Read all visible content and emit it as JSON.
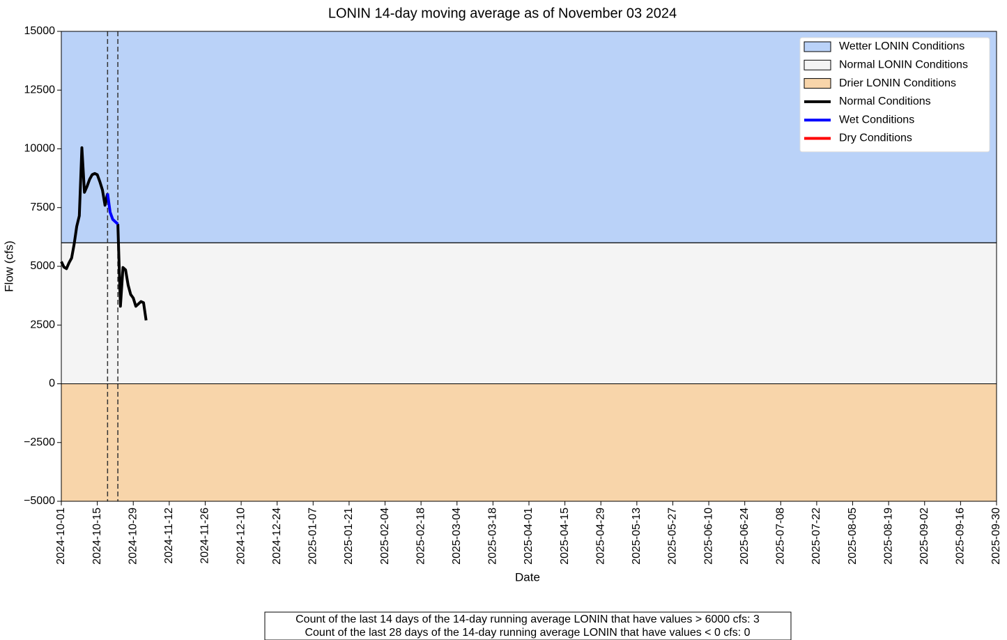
{
  "chart_data": {
    "type": "line",
    "title": "LONIN 14-day moving average as of November 03 2024",
    "x_label": "Date",
    "y_label": "Flow (cfs)",
    "x": [
      "2024-10-01",
      "2024-10-02",
      "2024-10-03",
      "2024-10-04",
      "2024-10-05",
      "2024-10-06",
      "2024-10-07",
      "2024-10-08",
      "2024-10-09",
      "2024-10-10",
      "2024-10-11",
      "2024-10-12",
      "2024-10-13",
      "2024-10-14",
      "2024-10-15",
      "2024-10-16",
      "2024-10-17",
      "2024-10-18",
      "2024-10-19",
      "2024-10-20",
      "2024-10-21",
      "2024-10-22",
      "2024-10-23",
      "2024-10-24",
      "2024-10-25",
      "2024-10-26",
      "2024-10-27",
      "2024-10-28",
      "2024-10-29",
      "2024-10-30",
      "2024-10-31",
      "2024-11-01",
      "2024-11-02",
      "2024-11-03"
    ],
    "series": [
      {
        "name": "Normal Conditions",
        "color": "#000000",
        "values": [
          5200,
          4970,
          4900,
          5150,
          5350,
          5950,
          6700,
          7150,
          10050,
          8150,
          8400,
          8700,
          8900,
          8950,
          8900,
          8600,
          8250,
          7600,
          8100,
          null,
          null,
          null,
          6800,
          3300,
          4950,
          4850,
          4200,
          3800,
          3650,
          3300,
          3400,
          3500,
          3450,
          2700
        ]
      },
      {
        "name": "Wet Conditions",
        "color": "#0000ff",
        "values": [
          null,
          null,
          null,
          null,
          null,
          null,
          null,
          null,
          null,
          null,
          null,
          null,
          null,
          null,
          null,
          null,
          null,
          null,
          8100,
          7300,
          7000,
          6900,
          6800,
          null,
          null,
          null,
          null,
          null,
          null,
          null,
          null,
          null,
          null,
          null
        ]
      },
      {
        "name": "Dry Conditions",
        "color": "#ff0000",
        "values": [
          null,
          null,
          null,
          null,
          null,
          null,
          null,
          null,
          null,
          null,
          null,
          null,
          null,
          null,
          null,
          null,
          null,
          null,
          null,
          null,
          null,
          null,
          null,
          null,
          null,
          null,
          null,
          null,
          null,
          null,
          null,
          null,
          null,
          null
        ]
      }
    ],
    "bands": [
      {
        "name": "Wetter LONIN Conditions",
        "color": "#bad2f8",
        "from": 6000,
        "to": 15000
      },
      {
        "name": "Normal LONIN Conditions",
        "color": "#f4f4f4",
        "from": 0,
        "to": 6000
      },
      {
        "name": "Drier LONIN Conditions",
        "color": "#f8d5aa",
        "from": -5000,
        "to": 0
      }
    ],
    "vlines": [
      "2024-10-19",
      "2024-10-23"
    ],
    "xlim": [
      "2024-10-01",
      "2025-09-30"
    ],
    "xticks": [
      "2024-10-01",
      "2024-10-15",
      "2024-10-29",
      "2024-11-12",
      "2024-11-26",
      "2024-12-10",
      "2024-12-24",
      "2025-01-07",
      "2025-01-21",
      "2025-02-04",
      "2025-02-18",
      "2025-03-04",
      "2025-03-18",
      "2025-04-01",
      "2025-04-15",
      "2025-04-29",
      "2025-05-13",
      "2025-05-27",
      "2025-06-10",
      "2025-06-24",
      "2025-07-08",
      "2025-07-22",
      "2025-08-05",
      "2025-08-19",
      "2025-09-02",
      "2025-09-16",
      "2025-09-30"
    ],
    "ylim": [
      -5000,
      15000
    ],
    "yticks": [
      {
        "value": -5000,
        "label": "−5000"
      },
      {
        "value": -2500,
        "label": "−2500"
      },
      0,
      2500,
      5000,
      7500,
      10000,
      12500,
      15000
    ],
    "legend": "upper right",
    "annotations": [
      "Count of the last 14 days of the 14-day running average LONIN that have values > 6000 cfs: 3",
      "Count of the last 28 days of the 14-day running average LONIN that have values < 0 cfs: 0"
    ]
  }
}
